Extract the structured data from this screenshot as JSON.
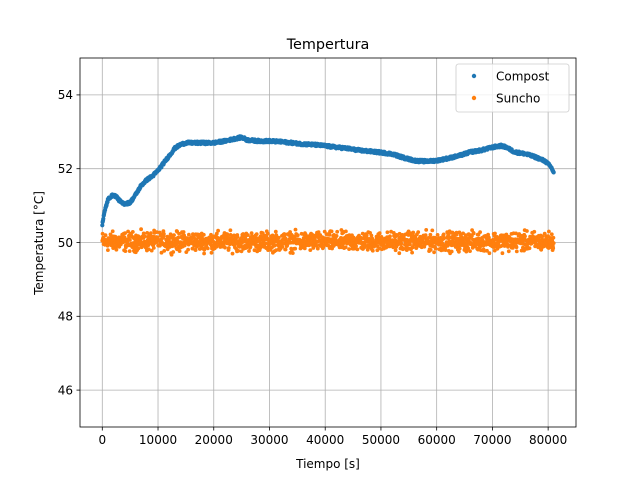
{
  "chart_data": {
    "type": "scatter",
    "title": "Tempertura",
    "xlabel": "Tiempo [s]",
    "ylabel": "Temperatura [°C]",
    "xlim": [
      -4000,
      85000
    ],
    "ylim": [
      45,
      55
    ],
    "xticks": [
      0,
      10000,
      20000,
      30000,
      40000,
      50000,
      60000,
      70000,
      80000
    ],
    "xtick_labels": [
      "0",
      "10000",
      "20000",
      "30000",
      "40000",
      "50000",
      "60000",
      "70000",
      "80000"
    ],
    "yticks": [
      46,
      48,
      50,
      52,
      54
    ],
    "ytick_labels": [
      "46",
      "48",
      "50",
      "52",
      "54"
    ],
    "grid": true,
    "legend_position": "top-right",
    "x_max": 81000,
    "series": [
      {
        "name": "Compost",
        "color": "#1f77b4",
        "points": [
          [
            0,
            50.5
          ],
          [
            300,
            50.75
          ],
          [
            700,
            51.0
          ],
          [
            1000,
            51.15
          ],
          [
            1500,
            51.25
          ],
          [
            2000,
            51.28
          ],
          [
            2500,
            51.25
          ],
          [
            3000,
            51.15
          ],
          [
            3500,
            51.07
          ],
          [
            4000,
            51.05
          ],
          [
            5000,
            51.08
          ],
          [
            6000,
            51.3
          ],
          [
            7000,
            51.55
          ],
          [
            8000,
            51.7
          ],
          [
            9000,
            51.8
          ],
          [
            10000,
            51.95
          ],
          [
            11000,
            52.15
          ],
          [
            12000,
            52.35
          ],
          [
            13000,
            52.55
          ],
          [
            14000,
            52.65
          ],
          [
            15000,
            52.7
          ],
          [
            17000,
            52.7
          ],
          [
            20000,
            52.7
          ],
          [
            22000,
            52.75
          ],
          [
            24000,
            52.82
          ],
          [
            25000,
            52.85
          ],
          [
            26000,
            52.78
          ],
          [
            28000,
            52.75
          ],
          [
            30000,
            52.75
          ],
          [
            32000,
            52.73
          ],
          [
            34000,
            52.7
          ],
          [
            36000,
            52.67
          ],
          [
            38000,
            52.65
          ],
          [
            40000,
            52.62
          ],
          [
            42000,
            52.58
          ],
          [
            44000,
            52.55
          ],
          [
            46000,
            52.5
          ],
          [
            48000,
            52.47
          ],
          [
            50000,
            52.44
          ],
          [
            52000,
            52.4
          ],
          [
            54000,
            52.3
          ],
          [
            56000,
            52.22
          ],
          [
            58000,
            52.2
          ],
          [
            60000,
            52.22
          ],
          [
            62000,
            52.28
          ],
          [
            64000,
            52.35
          ],
          [
            66000,
            52.45
          ],
          [
            68000,
            52.5
          ],
          [
            70000,
            52.58
          ],
          [
            71500,
            52.62
          ],
          [
            72500,
            52.58
          ],
          [
            74000,
            52.45
          ],
          [
            76000,
            52.4
          ],
          [
            78000,
            52.3
          ],
          [
            79500,
            52.2
          ],
          [
            80500,
            52.05
          ],
          [
            81000,
            51.9
          ]
        ]
      },
      {
        "name": "Suncho",
        "color": "#ff7f0e",
        "mean": 50.0,
        "band": [
          49.65,
          50.4
        ]
      }
    ]
  }
}
